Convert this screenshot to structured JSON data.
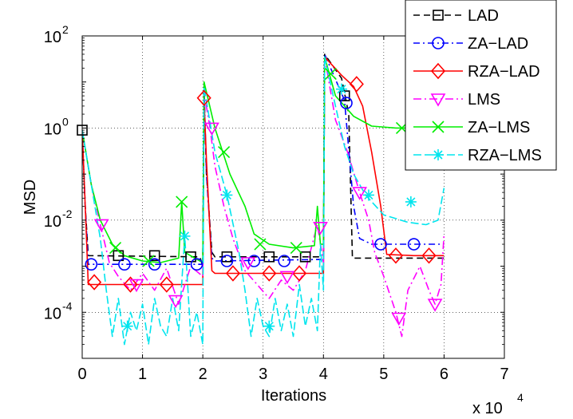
{
  "chart_data": {
    "type": "line",
    "ylabel": "MSD",
    "xlabel": "Iterations",
    "x_multiplier": "x 10",
    "x_multiplier_exp": "4",
    "y_scale": "log",
    "xlim": [
      0,
      7
    ],
    "ylim": [
      1e-05,
      100
    ],
    "x_ticks": [
      "0",
      "1",
      "2",
      "3",
      "4",
      "5",
      "6",
      "7"
    ],
    "y_ticks": [
      {
        "base": "10",
        "exp": "-4",
        "value": 0.0001
      },
      {
        "base": "10",
        "exp": "-2",
        "value": 0.01
      },
      {
        "base": "10",
        "exp": "0",
        "value": 1
      },
      {
        "base": "10",
        "exp": "2",
        "value": 100
      }
    ],
    "grid": true,
    "legend_position": "top-right",
    "series": [
      {
        "name": "LAD",
        "color": "#000000",
        "dash": "8,5",
        "marker": "square",
        "points": [
          [
            0,
            0.9
          ],
          [
            0.05,
            0.02
          ],
          [
            0.1,
            0.0017
          ],
          [
            1.95,
            0.0016
          ],
          [
            2.0,
            0.001
          ],
          [
            2.02,
            6
          ],
          [
            2.06,
            0.1
          ],
          [
            2.15,
            0.002
          ],
          [
            2.2,
            0.0016
          ],
          [
            3.95,
            0.0016
          ],
          [
            4.0,
            0.0016
          ],
          [
            4.02,
            40
          ],
          [
            4.3,
            12
          ],
          [
            4.42,
            2
          ],
          [
            4.48,
            0.0015
          ],
          [
            4.9,
            0.0015
          ],
          [
            5.5,
            0.0015
          ],
          [
            6.0,
            0.0015
          ]
        ],
        "markers": [
          [
            0,
            0.9
          ],
          [
            0.6,
            0.0017
          ],
          [
            1.2,
            0.0017
          ],
          [
            1.8,
            0.0016
          ],
          [
            2.4,
            0.0016
          ],
          [
            3.1,
            0.0016
          ],
          [
            3.7,
            0.0016
          ],
          [
            4.35,
            5
          ]
        ]
      },
      {
        "name": "ZA−LAD",
        "color": "#0000ff",
        "dash": "8,4,2,4",
        "marker": "circle",
        "points": [
          [
            0,
            0.9
          ],
          [
            0.05,
            0.02
          ],
          [
            0.1,
            0.0011
          ],
          [
            1.95,
            0.0011
          ],
          [
            2.0,
            0.0011
          ],
          [
            2.02,
            8
          ],
          [
            2.06,
            0.1
          ],
          [
            2.15,
            0.0015
          ],
          [
            2.2,
            0.0013
          ],
          [
            3.95,
            0.0014
          ],
          [
            4.0,
            0.0013
          ],
          [
            4.02,
            40
          ],
          [
            4.35,
            4
          ],
          [
            4.5,
            0.02
          ],
          [
            4.6,
            0.004
          ],
          [
            4.8,
            0.003
          ],
          [
            5.5,
            0.003
          ],
          [
            6.0,
            0.003
          ]
        ],
        "markers": [
          [
            0.15,
            0.0011
          ],
          [
            0.7,
            0.0011
          ],
          [
            1.2,
            0.0011
          ],
          [
            1.9,
            0.0011
          ],
          [
            2.4,
            0.0013
          ],
          [
            2.85,
            0.0013
          ],
          [
            3.35,
            0.0013
          ],
          [
            4.38,
            3.5
          ],
          [
            4.95,
            0.003
          ],
          [
            5.5,
            0.003
          ]
        ]
      },
      {
        "name": "RZA−LAD",
        "color": "#ff0000",
        "dash": "",
        "marker": "diamond",
        "points": [
          [
            0,
            0.9
          ],
          [
            0.05,
            0.02
          ],
          [
            0.1,
            0.0004
          ],
          [
            1.95,
            0.0004
          ],
          [
            2.0,
            0.0004
          ],
          [
            2.02,
            4
          ],
          [
            2.06,
            0.2
          ],
          [
            2.15,
            0.0008
          ],
          [
            2.2,
            0.0007
          ],
          [
            3.95,
            0.0007
          ],
          [
            4.0,
            0.0007
          ],
          [
            4.02,
            35
          ],
          [
            4.3,
            14
          ],
          [
            4.5,
            8
          ],
          [
            4.65,
            3
          ],
          [
            4.8,
            0.3
          ],
          [
            4.95,
            0.02
          ],
          [
            5.05,
            0.0018
          ],
          [
            5.5,
            0.0017
          ],
          [
            6.0,
            0.0017
          ]
        ],
        "markers": [
          [
            0.2,
            0.00045
          ],
          [
            0.8,
            0.0004
          ],
          [
            1.4,
            0.0004
          ],
          [
            2.02,
            4.5
          ],
          [
            2.5,
            0.0007
          ],
          [
            3.1,
            0.0007
          ],
          [
            3.6,
            0.0007
          ],
          [
            4.55,
            9
          ],
          [
            5.2,
            0.0017
          ],
          [
            5.75,
            0.0017
          ]
        ]
      },
      {
        "name": "LMS",
        "color": "#ff00ff",
        "dash": "10,4,2,4",
        "marker": "triangle-down",
        "points": [
          [
            0,
            0.9
          ],
          [
            0.15,
            0.06
          ],
          [
            0.3,
            0.008
          ],
          [
            0.45,
            0.0012
          ],
          [
            0.6,
            0.0006
          ],
          [
            0.8,
            0.0003
          ],
          [
            1.0,
            0.0007
          ],
          [
            1.2,
            0.0003
          ],
          [
            1.4,
            0.0009
          ],
          [
            1.6,
            0.00015
          ],
          [
            1.8,
            0.001
          ],
          [
            2.0,
            0.0006
          ],
          [
            2.02,
            6
          ],
          [
            2.12,
            1.0
          ],
          [
            2.2,
            0.15
          ],
          [
            2.35,
            0.02
          ],
          [
            2.5,
            0.004
          ],
          [
            2.7,
            0.0008
          ],
          [
            2.9,
            0.0004
          ],
          [
            3.1,
            0.0002
          ],
          [
            3.3,
            0.0005
          ],
          [
            3.5,
            0.0003
          ],
          [
            3.7,
            0.0008
          ],
          [
            3.9,
            0.008
          ],
          [
            4.0,
            0.0012
          ],
          [
            4.02,
            35
          ],
          [
            4.2,
            1.5
          ],
          [
            4.4,
            0.3
          ],
          [
            4.6,
            0.04
          ],
          [
            4.75,
            0.01
          ],
          [
            4.85,
            0.002
          ],
          [
            5.0,
            0.0006
          ],
          [
            5.2,
            0.0001
          ],
          [
            5.3,
            3e-05
          ],
          [
            5.4,
            0.0003
          ],
          [
            5.6,
            0.001
          ],
          [
            5.75,
            0.0003
          ],
          [
            5.85,
            0.00015
          ],
          [
            5.95,
            0.0004
          ],
          [
            6.0,
            0.005
          ]
        ],
        "markers": [
          [
            0.32,
            0.008
          ],
          [
            0.9,
            0.0004
          ],
          [
            1.55,
            0.00018
          ],
          [
            2.15,
            1.0
          ],
          [
            2.75,
            0.0012
          ],
          [
            3.4,
            0.0006
          ],
          [
            3.95,
            0.007
          ],
          [
            4.6,
            0.04
          ],
          [
            5.25,
            7.5e-05
          ],
          [
            5.85,
            0.00015
          ]
        ]
      },
      {
        "name": "ZA−LMS",
        "color": "#00ee00",
        "dash": "",
        "marker": "x",
        "points": [
          [
            0,
            0.9
          ],
          [
            0.15,
            0.06
          ],
          [
            0.3,
            0.01
          ],
          [
            0.5,
            0.003
          ],
          [
            0.7,
            0.0017
          ],
          [
            1.0,
            0.0013
          ],
          [
            1.3,
            0.0012
          ],
          [
            1.6,
            0.0015
          ],
          [
            1.65,
            0.025
          ],
          [
            1.7,
            0.002
          ],
          [
            1.95,
            0.0013
          ],
          [
            2.0,
            0.0012
          ],
          [
            2.02,
            10
          ],
          [
            2.2,
            1.0
          ],
          [
            2.45,
            0.1
          ],
          [
            2.7,
            0.02
          ],
          [
            2.85,
            0.005
          ],
          [
            3.1,
            0.003
          ],
          [
            3.5,
            0.0025
          ],
          [
            3.85,
            0.0028
          ],
          [
            3.9,
            0.02
          ],
          [
            3.95,
            0.003
          ],
          [
            4.0,
            0.003
          ],
          [
            4.02,
            35
          ],
          [
            4.2,
            5
          ],
          [
            4.5,
            1.8
          ],
          [
            4.8,
            1.1
          ],
          [
            5.2,
            1.0
          ],
          [
            6.0,
            1.0
          ]
        ],
        "markers": [
          [
            0.55,
            0.0025
          ],
          [
            1.1,
            0.0013
          ],
          [
            1.65,
            0.025
          ],
          [
            2.35,
            0.3
          ],
          [
            2.95,
            0.003
          ],
          [
            3.55,
            0.0025
          ],
          [
            4.12,
            15
          ],
          [
            5.3,
            1.0
          ],
          [
            5.9,
            1.0
          ]
        ]
      },
      {
        "name": "RZA−LMS",
        "color": "#00e5ee",
        "dash": "10,4",
        "marker": "asterisk",
        "points": [
          [
            0,
            0.9
          ],
          [
            0.15,
            0.06
          ],
          [
            0.3,
            0.004
          ],
          [
            0.4,
            0.0003
          ],
          [
            0.5,
            3e-05
          ],
          [
            0.6,
            0.0002
          ],
          [
            0.7,
            2e-05
          ],
          [
            0.8,
            0.0001
          ],
          [
            0.9,
            4e-05
          ],
          [
            1.0,
            0.00015
          ],
          [
            1.1,
            2e-05
          ],
          [
            1.2,
            0.0002
          ],
          [
            1.3,
            5e-05
          ],
          [
            1.4,
            3e-05
          ],
          [
            1.5,
            0.0002
          ],
          [
            1.6,
            4e-05
          ],
          [
            1.7,
            0.0045
          ],
          [
            1.8,
            3e-05
          ],
          [
            1.9,
            0.0001
          ],
          [
            2.0,
            2e-05
          ],
          [
            2.02,
            8
          ],
          [
            2.2,
            0.3
          ],
          [
            2.4,
            0.035
          ],
          [
            2.6,
            0.002
          ],
          [
            2.7,
            0.0003
          ],
          [
            2.8,
            3e-05
          ],
          [
            2.9,
            0.0002
          ],
          [
            3.0,
            5e-05
          ],
          [
            3.1,
            3e-05
          ],
          [
            3.2,
            0.0002
          ],
          [
            3.3,
            4e-05
          ],
          [
            3.4,
            0.00015
          ],
          [
            3.5,
            3e-05
          ],
          [
            3.6,
            0.0004
          ],
          [
            3.7,
            5e-05
          ],
          [
            3.8,
            0.0002
          ],
          [
            3.9,
            4e-05
          ],
          [
            3.95,
            0.003
          ],
          [
            4.0,
            0.0003
          ],
          [
            4.02,
            35
          ],
          [
            4.2,
            3
          ],
          [
            4.35,
            0.4
          ],
          [
            4.5,
            0.1
          ],
          [
            4.7,
            0.035
          ],
          [
            5.0,
            0.013
          ],
          [
            5.4,
            0.009
          ],
          [
            5.7,
            0.008
          ],
          [
            5.9,
            0.01
          ],
          [
            6.0,
            0.05
          ]
        ],
        "markers": [
          [
            0.75,
            5e-05
          ],
          [
            1.7,
            0.0045
          ],
          [
            2.4,
            0.035
          ],
          [
            3.1,
            5e-05
          ],
          [
            4.3,
            7
          ],
          [
            4.75,
            0.035
          ],
          [
            5.45,
            0.025
          ]
        ]
      }
    ]
  }
}
